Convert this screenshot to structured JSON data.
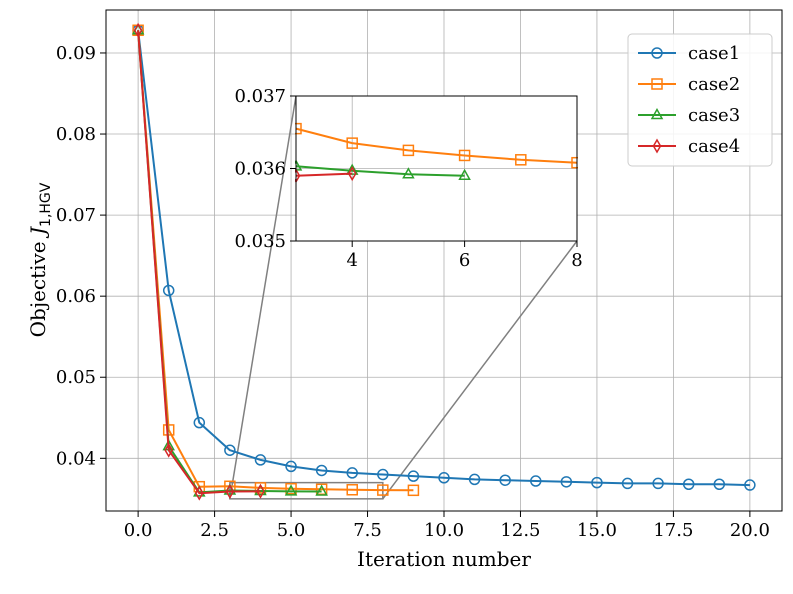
{
  "chart_data": {
    "type": "line",
    "xlabel": "Iteration number",
    "ylabel_prefix": "Objective ",
    "ylabel_var": "J",
    "ylabel_sub": "1,HGV",
    "xlim": [
      -1.05,
      21.05
    ],
    "ylim": [
      0.0335,
      0.0953
    ],
    "xticks": [
      0.0,
      2.5,
      5.0,
      7.5,
      10.0,
      12.5,
      15.0,
      17.5,
      20.0
    ],
    "xtick_labels": [
      "0.0",
      "2.5",
      "5.0",
      "7.5",
      "10.0",
      "12.5",
      "15.0",
      "17.5",
      "20.0"
    ],
    "yticks": [
      0.04,
      0.05,
      0.06,
      0.07,
      0.08,
      0.09
    ],
    "ytick_labels": [
      "0.04",
      "0.05",
      "0.06",
      "0.07",
      "0.08",
      "0.09"
    ],
    "grid": true,
    "legend_position": "top-right",
    "series": [
      {
        "name": "case1",
        "color": "#1f77b4",
        "marker": "circle",
        "x": [
          0,
          1,
          2,
          3,
          4,
          5,
          6,
          7,
          8,
          9,
          10,
          11,
          12,
          13,
          14,
          15,
          16,
          17,
          18,
          19,
          20
        ],
        "y": [
          0.0928,
          0.0607,
          0.0444,
          0.041,
          0.0398,
          0.039,
          0.0385,
          0.0382,
          0.038,
          0.0378,
          0.0376,
          0.0374,
          0.0373,
          0.0372,
          0.0371,
          0.037,
          0.0369,
          0.0369,
          0.0368,
          0.0368,
          0.0367
        ]
      },
      {
        "name": "case2",
        "color": "#ff7f0e",
        "marker": "square",
        "x": [
          0,
          1,
          2,
          3,
          4,
          5,
          6,
          7,
          8,
          9
        ],
        "y": [
          0.0928,
          0.0435,
          0.0365,
          0.03655,
          0.03635,
          0.03625,
          0.03618,
          0.03612,
          0.03608,
          0.03605
        ]
      },
      {
        "name": "case3",
        "color": "#2ca02c",
        "marker": "triangle",
        "x": [
          0,
          1,
          2,
          3,
          4,
          5,
          6
        ],
        "y": [
          0.0928,
          0.0415,
          0.0358,
          0.03603,
          0.03597,
          0.03592,
          0.0359
        ]
      },
      {
        "name": "case4",
        "color": "#d62728",
        "marker": "diamond",
        "x": [
          0,
          1,
          2,
          3,
          4
        ],
        "y": [
          0.0928,
          0.041,
          0.0357,
          0.0359,
          0.03593
        ]
      }
    ],
    "inset": {
      "xlim": [
        3,
        8
      ],
      "ylim": [
        0.035,
        0.037
      ],
      "xticks": [
        4,
        6,
        8
      ],
      "xtick_labels": [
        "4",
        "6",
        "8"
      ],
      "yticks": [
        0.035,
        0.036,
        0.037
      ],
      "ytick_labels": [
        "0.035",
        "0.036",
        "0.037"
      ]
    }
  }
}
